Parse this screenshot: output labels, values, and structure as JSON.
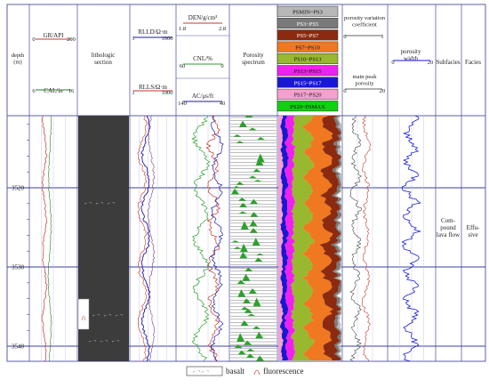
{
  "chart_data": {
    "type": "well-log",
    "depth_unit_label": "depth\n(m)",
    "depth_ticks": [
      3520,
      3530,
      3540
    ],
    "columns": {
      "depth": {
        "header": "depth\n(m)"
      },
      "gr_cal": {
        "gr_label": "GR/API",
        "gr_range": [
          0,
          200
        ],
        "cal_label": "CAL/in",
        "cal_range": [
          6,
          16
        ],
        "gr_color": "#c0392b",
        "cal_color": "#2a7a2a"
      },
      "lithology": {
        "header": "lithologic\nsection"
      },
      "resistivity": {
        "rlld_label": "RLLD/Ω·m",
        "rlls_label": "RLLS/Ω·m",
        "range": [
          1,
          1000
        ],
        "rlld_color": "#1a1aa0",
        "rlls_color": "#c0392b"
      },
      "den_cnl_ac": {
        "den_label": "DEN/g/cm³",
        "den_range": [
          1.8,
          2.8
        ],
        "cnl_label": "CNL/%",
        "cnl_range": [
          60,
          0
        ],
        "ac_label": "AC/μs/ft",
        "ac_range": [
          140,
          40
        ],
        "den_color": "#c0392b",
        "cnl_color": "#2ca02c",
        "ac_color": "#1a1aa0"
      },
      "porosity_spectrum": {
        "header": "Porosity\nspectrum",
        "fill_color": "#2ca02c"
      },
      "porosity_bins": {
        "legend": [
          {
            "label": "PSMIN~PS3",
            "color": "#b8b8b8"
          },
          {
            "label": "PS3~PS5",
            "color": "#7a7a7a"
          },
          {
            "label": "PS5~PS7",
            "color": "#8b2a0e"
          },
          {
            "label": "PS7~PS10",
            "color": "#f07820"
          },
          {
            "label": "PS10~PS13",
            "color": "#98b830"
          },
          {
            "label": "PS13~PS15",
            "color": "#f020f0"
          },
          {
            "label": "PS15~PS17",
            "color": "#1818d0"
          },
          {
            "label": "PS17~PS20",
            "color": "#f6a0d0"
          },
          {
            "label": "PS20~PSMAX",
            "color": "#10d010"
          }
        ]
      },
      "pore_coef": {
        "pvc_label": "porosity variation\ncoefficient",
        "pvc_range": [
          0,
          1
        ],
        "mpp_label": "main peak\nporosity",
        "mpp_range": [
          0,
          20
        ]
      },
      "porosity_width": {
        "header": "porosity\nwidth",
        "range": [
          0,
          20
        ],
        "color": "#1a1ae0"
      },
      "subfacies": {
        "header": "Subfacies",
        "value": "Com-\npound\nlava flow"
      },
      "facies": {
        "header": "Facies",
        "value": "Effu-\nsive"
      }
    },
    "legend": [
      {
        "label": "basalt"
      },
      {
        "label": "fluorescence"
      }
    ]
  }
}
